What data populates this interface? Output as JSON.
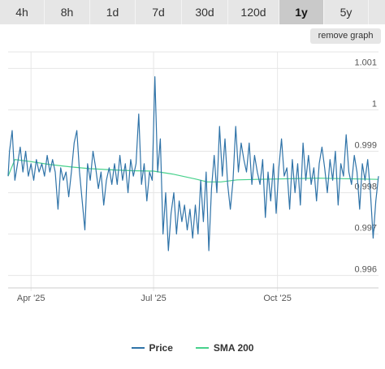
{
  "tabs": [
    {
      "label": "4h",
      "active": false
    },
    {
      "label": "8h",
      "active": false
    },
    {
      "label": "1d",
      "active": false
    },
    {
      "label": "7d",
      "active": false
    },
    {
      "label": "30d",
      "active": false
    },
    {
      "label": "120d",
      "active": false
    },
    {
      "label": "1y",
      "active": true
    },
    {
      "label": "5y",
      "active": false
    }
  ],
  "remove_graph_label": "remove graph",
  "colors": {
    "price": "#2f73a8",
    "sma": "#47d18c",
    "grid": "#e6e6e6",
    "axis_text": "#555555"
  },
  "chart_data": {
    "type": "line",
    "x_range": [
      "2025-03-15",
      "2025-12-15"
    ],
    "ylim": [
      0.9957,
      1.0014
    ],
    "y_ticks": [
      0.996,
      0.997,
      0.998,
      0.999,
      1,
      1.001
    ],
    "y_tick_labels": [
      "0.996",
      "0.997",
      "0.998",
      "0.999",
      "1",
      "1.001"
    ],
    "x_ticks": [
      "2025-04-01",
      "2025-07-01",
      "2025-10-01"
    ],
    "x_tick_labels": [
      "Apr '25",
      "Jul '25",
      "Oct '25"
    ],
    "grid": true,
    "legend_position": "bottom-center",
    "series": [
      {
        "name": "Price",
        "points": [
          [
            "2025-03-15",
            0.9984
          ],
          [
            "2025-03-16",
            0.999
          ],
          [
            "2025-03-18",
            0.9995
          ],
          [
            "2025-03-20",
            0.9983
          ],
          [
            "2025-03-22",
            0.9987
          ],
          [
            "2025-03-24",
            0.9991
          ],
          [
            "2025-03-26",
            0.9985
          ],
          [
            "2025-03-28",
            0.999
          ],
          [
            "2025-03-30",
            0.9984
          ],
          [
            "2025-04-01",
            0.9987
          ],
          [
            "2025-04-03",
            0.9983
          ],
          [
            "2025-04-05",
            0.9988
          ],
          [
            "2025-04-07",
            0.9985
          ],
          [
            "2025-04-09",
            0.9987
          ],
          [
            "2025-04-11",
            0.9984
          ],
          [
            "2025-04-13",
            0.9989
          ],
          [
            "2025-04-15",
            0.9985
          ],
          [
            "2025-04-17",
            0.9988
          ],
          [
            "2025-04-19",
            0.9985
          ],
          [
            "2025-04-21",
            0.9976
          ],
          [
            "2025-04-23",
            0.9986
          ],
          [
            "2025-04-25",
            0.9983
          ],
          [
            "2025-04-27",
            0.9985
          ],
          [
            "2025-04-29",
            0.9979
          ],
          [
            "2025-05-01",
            0.9985
          ],
          [
            "2025-05-03",
            0.9992
          ],
          [
            "2025-05-05",
            0.9995
          ],
          [
            "2025-05-07",
            0.9985
          ],
          [
            "2025-05-09",
            0.9978
          ],
          [
            "2025-05-11",
            0.9971
          ],
          [
            "2025-05-13",
            0.9987
          ],
          [
            "2025-05-15",
            0.9983
          ],
          [
            "2025-05-17",
            0.999
          ],
          [
            "2025-05-19",
            0.9986
          ],
          [
            "2025-05-21",
            0.9981
          ],
          [
            "2025-05-23",
            0.9985
          ],
          [
            "2025-05-25",
            0.9977
          ],
          [
            "2025-05-27",
            0.9983
          ],
          [
            "2025-05-29",
            0.9986
          ],
          [
            "2025-05-31",
            0.9982
          ],
          [
            "2025-06-02",
            0.9987
          ],
          [
            "2025-06-04",
            0.9982
          ],
          [
            "2025-06-06",
            0.9989
          ],
          [
            "2025-06-08",
            0.9983
          ],
          [
            "2025-06-10",
            0.9987
          ],
          [
            "2025-06-12",
            0.998
          ],
          [
            "2025-06-14",
            0.9988
          ],
          [
            "2025-06-16",
            0.9984
          ],
          [
            "2025-06-18",
            0.9987
          ],
          [
            "2025-06-20",
            0.9999
          ],
          [
            "2025-06-22",
            0.9982
          ],
          [
            "2025-06-24",
            0.9987
          ],
          [
            "2025-06-26",
            0.9978
          ],
          [
            "2025-06-28",
            0.9985
          ],
          [
            "2025-06-30",
            0.9983
          ],
          [
            "2025-07-02",
            1.0008
          ],
          [
            "2025-07-04",
            0.9985
          ],
          [
            "2025-07-06",
            0.9993
          ],
          [
            "2025-07-08",
            0.997
          ],
          [
            "2025-07-10",
            0.998
          ],
          [
            "2025-07-12",
            0.9966
          ],
          [
            "2025-07-14",
            0.9975
          ],
          [
            "2025-07-16",
            0.998
          ],
          [
            "2025-07-18",
            0.997
          ],
          [
            "2025-07-20",
            0.9978
          ],
          [
            "2025-07-22",
            0.9973
          ],
          [
            "2025-07-24",
            0.9977
          ],
          [
            "2025-07-26",
            0.9971
          ],
          [
            "2025-07-28",
            0.9976
          ],
          [
            "2025-07-30",
            0.9969
          ],
          [
            "2025-08-01",
            0.9977
          ],
          [
            "2025-08-03",
            0.997
          ],
          [
            "2025-08-05",
            0.9983
          ],
          [
            "2025-08-07",
            0.9973
          ],
          [
            "2025-08-09",
            0.9985
          ],
          [
            "2025-08-11",
            0.9966
          ],
          [
            "2025-08-13",
            0.9981
          ],
          [
            "2025-08-15",
            0.9989
          ],
          [
            "2025-08-17",
            0.998
          ],
          [
            "2025-08-19",
            0.9996
          ],
          [
            "2025-08-21",
            0.9984
          ],
          [
            "2025-08-23",
            0.9993
          ],
          [
            "2025-08-25",
            0.9982
          ],
          [
            "2025-08-27",
            0.9976
          ],
          [
            "2025-08-29",
            0.9983
          ],
          [
            "2025-08-31",
            0.9996
          ],
          [
            "2025-09-02",
            0.9985
          ],
          [
            "2025-09-04",
            0.9992
          ],
          [
            "2025-09-06",
            0.9988
          ],
          [
            "2025-09-08",
            0.9985
          ],
          [
            "2025-09-10",
            0.9992
          ],
          [
            "2025-09-12",
            0.9982
          ],
          [
            "2025-09-14",
            0.9989
          ],
          [
            "2025-09-16",
            0.9985
          ],
          [
            "2025-09-18",
            0.9982
          ],
          [
            "2025-09-20",
            0.9988
          ],
          [
            "2025-09-22",
            0.9974
          ],
          [
            "2025-09-24",
            0.9985
          ],
          [
            "2025-09-26",
            0.9978
          ],
          [
            "2025-09-28",
            0.9987
          ],
          [
            "2025-09-30",
            0.9975
          ],
          [
            "2025-10-02",
            0.9986
          ],
          [
            "2025-10-04",
            0.9993
          ],
          [
            "2025-10-06",
            0.9984
          ],
          [
            "2025-10-08",
            0.9986
          ],
          [
            "2025-10-10",
            0.9976
          ],
          [
            "2025-10-12",
            0.9988
          ],
          [
            "2025-10-14",
            0.998
          ],
          [
            "2025-10-16",
            0.9987
          ],
          [
            "2025-10-18",
            0.9977
          ],
          [
            "2025-10-20",
            0.9992
          ],
          [
            "2025-10-22",
            0.9983
          ],
          [
            "2025-10-24",
            0.9989
          ],
          [
            "2025-10-26",
            0.9982
          ],
          [
            "2025-10-28",
            0.9986
          ],
          [
            "2025-10-30",
            0.9978
          ],
          [
            "2025-11-01",
            0.9987
          ],
          [
            "2025-11-03",
            0.9991
          ],
          [
            "2025-11-05",
            0.9986
          ],
          [
            "2025-11-07",
            0.998
          ],
          [
            "2025-11-09",
            0.9988
          ],
          [
            "2025-11-11",
            0.9983
          ],
          [
            "2025-11-13",
            0.999
          ],
          [
            "2025-11-15",
            0.9977
          ],
          [
            "2025-11-17",
            0.9987
          ],
          [
            "2025-11-19",
            0.9984
          ],
          [
            "2025-11-21",
            0.9994
          ],
          [
            "2025-11-23",
            0.9985
          ],
          [
            "2025-11-25",
            0.9982
          ],
          [
            "2025-11-27",
            0.9989
          ],
          [
            "2025-11-29",
            0.9985
          ],
          [
            "2025-12-01",
            0.9976
          ],
          [
            "2025-12-03",
            0.9987
          ],
          [
            "2025-12-05",
            0.9983
          ],
          [
            "2025-12-07",
            0.9988
          ],
          [
            "2025-12-09",
            0.998
          ],
          [
            "2025-12-11",
            0.9969
          ],
          [
            "2025-12-13",
            0.9978
          ],
          [
            "2025-12-15",
            0.9984
          ]
        ]
      },
      {
        "name": "SMA 200",
        "points": [
          [
            "2025-03-15",
            0.9984
          ],
          [
            "2025-03-20",
            0.9988
          ],
          [
            "2025-04-01",
            0.99875
          ],
          [
            "2025-04-15",
            0.99868
          ],
          [
            "2025-05-01",
            0.99862
          ],
          [
            "2025-05-15",
            0.99858
          ],
          [
            "2025-06-01",
            0.99855
          ],
          [
            "2025-06-15",
            0.99853
          ],
          [
            "2025-07-01",
            0.99852
          ],
          [
            "2025-07-15",
            0.99845
          ],
          [
            "2025-08-01",
            0.99833
          ],
          [
            "2025-08-10",
            0.99826
          ],
          [
            "2025-08-20",
            0.99826
          ],
          [
            "2025-09-01",
            0.99831
          ],
          [
            "2025-09-15",
            0.99832
          ],
          [
            "2025-10-01",
            0.99833
          ],
          [
            "2025-10-15",
            0.99834
          ],
          [
            "2025-11-01",
            0.99835
          ],
          [
            "2025-11-15",
            0.99834
          ],
          [
            "2025-12-01",
            0.99833
          ],
          [
            "2025-12-15",
            0.99832
          ]
        ]
      }
    ]
  }
}
